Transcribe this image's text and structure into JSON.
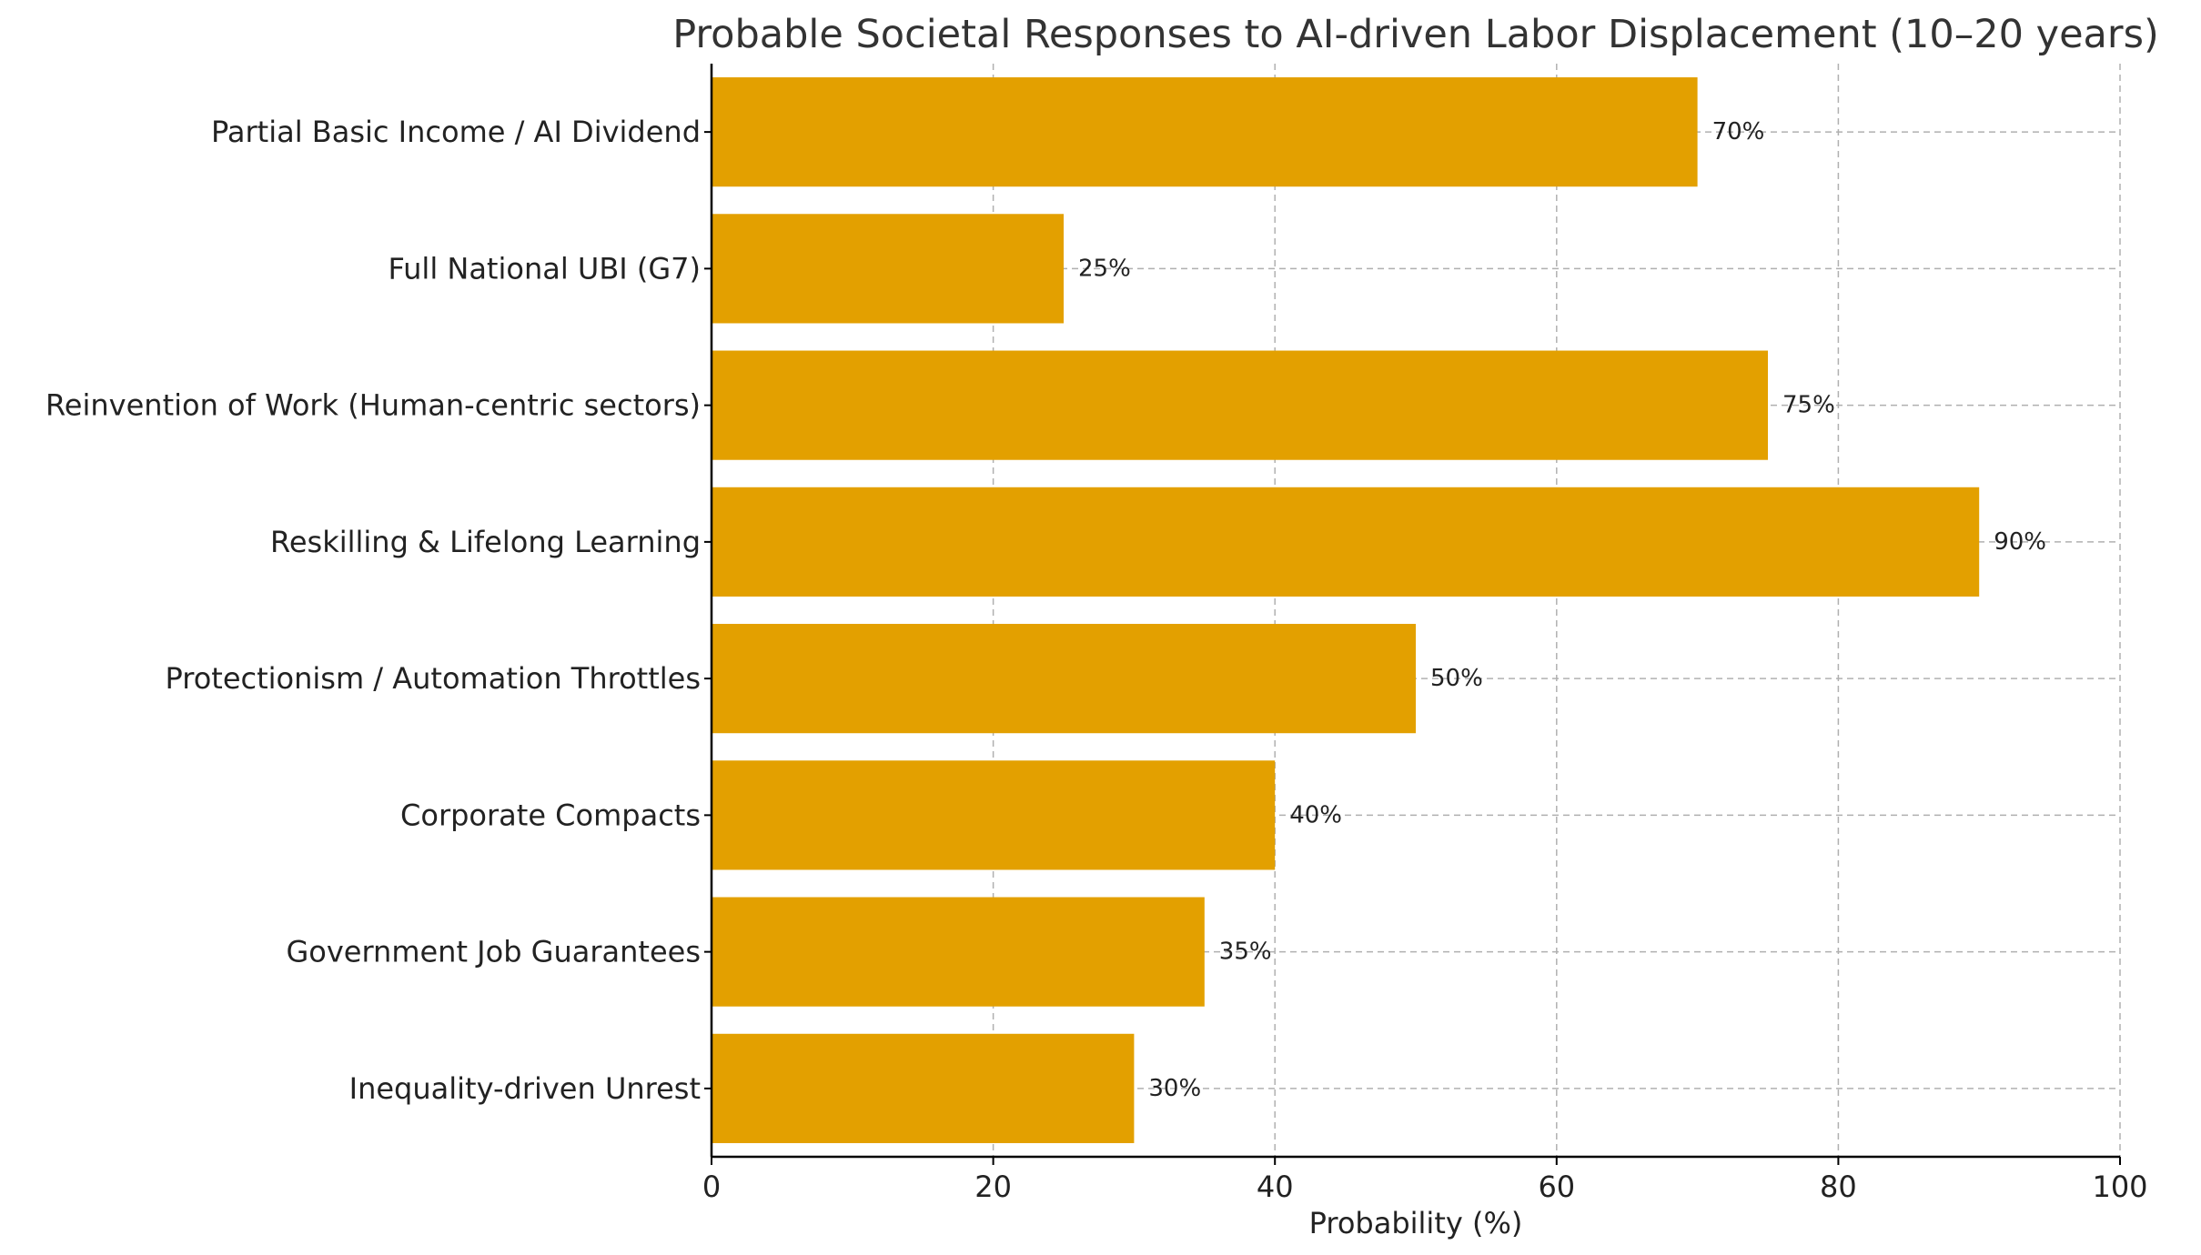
{
  "chart_data": {
    "type": "bar",
    "orientation": "horizontal",
    "title": "Probable Societal Responses to AI-driven Labor Displacement (10–20 years)",
    "xlabel": "Probability (%)",
    "ylabel": "",
    "xlim": [
      0,
      100
    ],
    "xticks": [
      0,
      20,
      40,
      60,
      80,
      100
    ],
    "grid": true,
    "bar_color": "#e3a000",
    "categories": [
      "Partial Basic Income / AI Dividend",
      "Full National UBI (G7)",
      "Reinvention of Work (Human-centric sectors)",
      "Reskilling & Lifelong Learning",
      "Protectionism / Automation Throttles",
      "Corporate Compacts",
      "Government Job Guarantees",
      "Inequality-driven Unrest"
    ],
    "values": [
      70,
      25,
      75,
      90,
      50,
      40,
      35,
      30
    ],
    "data_labels": [
      "70%",
      "25%",
      "75%",
      "90%",
      "50%",
      "40%",
      "35%",
      "30%"
    ]
  }
}
